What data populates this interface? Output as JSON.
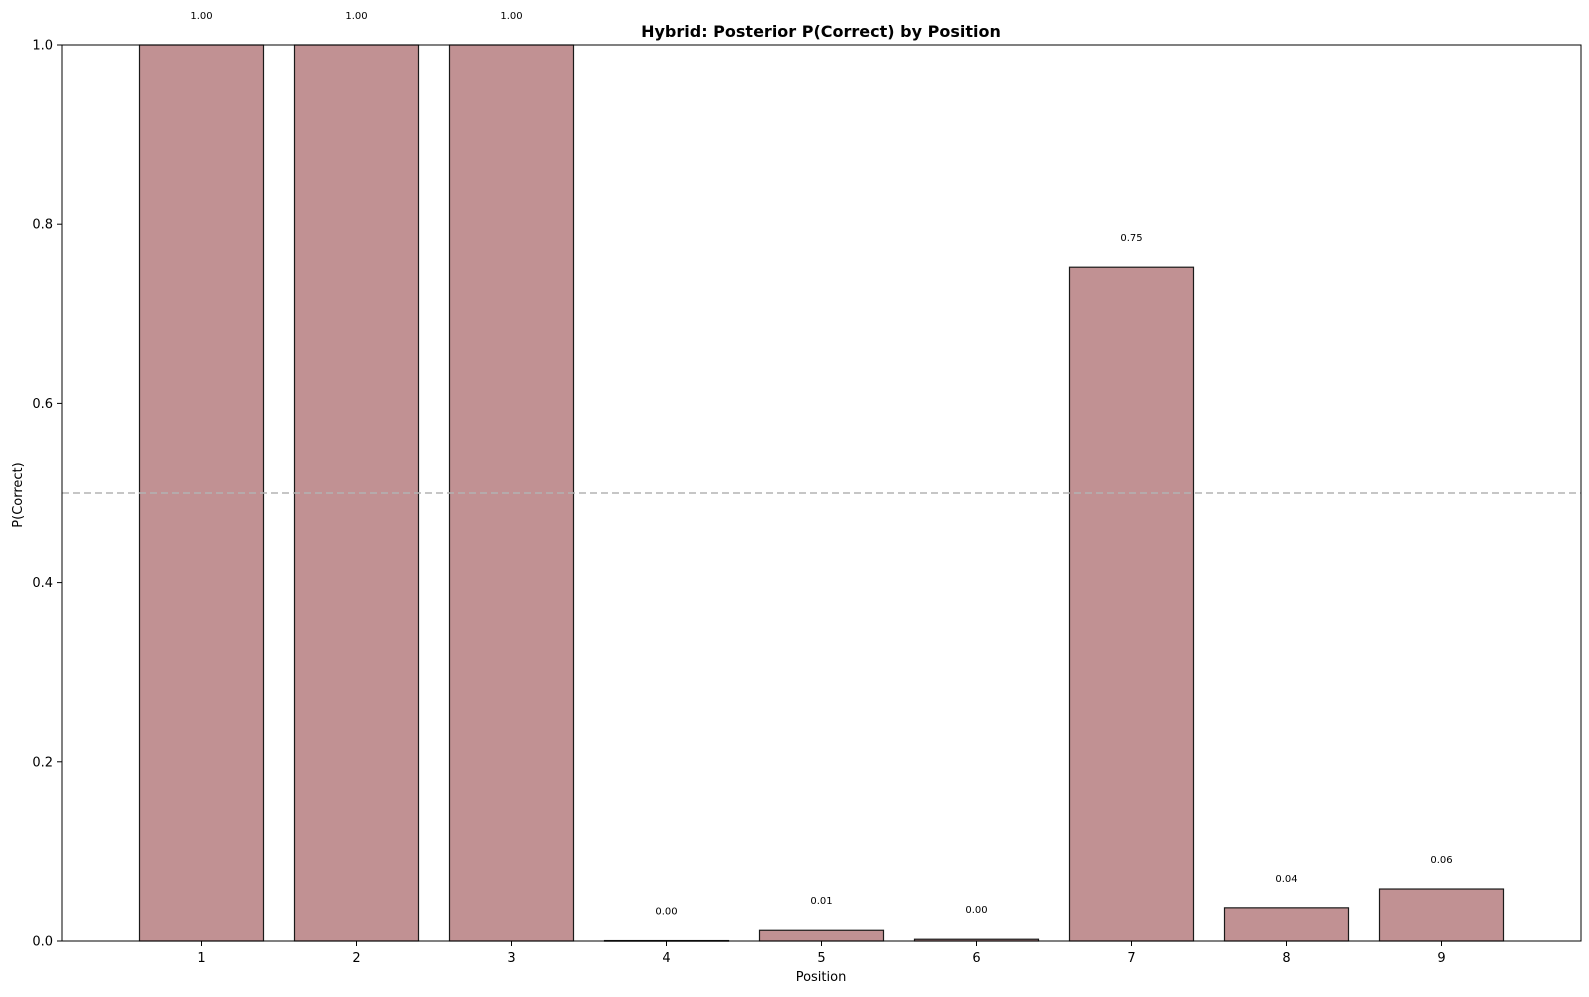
{
  "chart_data": {
    "type": "bar",
    "title": "Hybrid: Posterior P(Correct) by Position",
    "xlabel": "Position",
    "ylabel": "P(Correct)",
    "categories": [
      "1",
      "2",
      "3",
      "4",
      "5",
      "6",
      "7",
      "8",
      "9"
    ],
    "values": [
      1.0,
      1.0,
      1.0,
      0.0005,
      0.012,
      0.002,
      0.752,
      0.037,
      0.058
    ],
    "value_labels": [
      "1.00",
      "1.00",
      "1.00",
      "0.00",
      "0.01",
      "0.00",
      "0.75",
      "0.04",
      "0.06"
    ],
    "ylim": [
      0.0,
      1.0
    ],
    "yticks": [
      0.0,
      0.2,
      0.4,
      0.6,
      0.8,
      1.0
    ],
    "ytick_labels": [
      "0.0",
      "0.2",
      "0.4",
      "0.6",
      "0.8",
      "1.0"
    ],
    "reference_line": {
      "y": 0.5,
      "style": "dashed"
    },
    "grid": false,
    "legend": false,
    "colors": {
      "bar_fill": "#c19193",
      "bar_edge": "#1a1a1a",
      "reference_line": "#b3b3b3"
    }
  }
}
